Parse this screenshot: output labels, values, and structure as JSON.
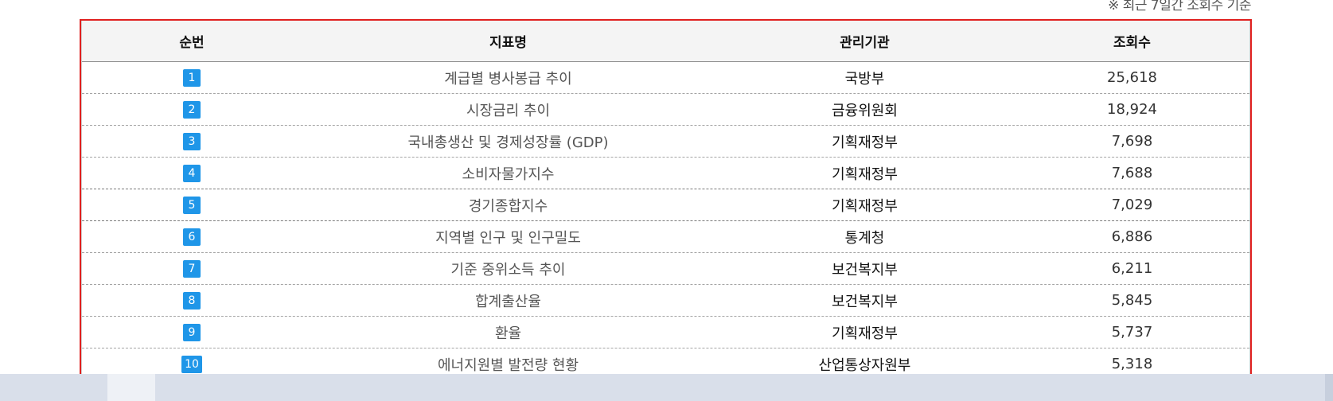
{
  "note": "※ 최근 7일간 조회수 기준",
  "table": {
    "headers": [
      "순번",
      "지표명",
      "관리기관",
      "조회수"
    ],
    "rows": [
      {
        "rank": "1",
        "indicator": "계급별 병사봉급 추이",
        "agency": "국방부",
        "views": "25,618"
      },
      {
        "rank": "2",
        "indicator": "시장금리 추이",
        "agency": "금융위원회",
        "views": "18,924"
      },
      {
        "rank": "3",
        "indicator": "국내총생산 및 경제성장률 (GDP)",
        "agency": "기획재정부",
        "views": "7,698"
      },
      {
        "rank": "4",
        "indicator": "소비자물가지수",
        "agency": "기획재정부",
        "views": "7,688"
      },
      {
        "rank": "5",
        "indicator": "경기종합지수",
        "agency": "기획재정부",
        "views": "7,029"
      },
      {
        "rank": "6",
        "indicator": "지역별 인구 및 인구밀도",
        "agency": "통계청",
        "views": "6,886"
      },
      {
        "rank": "7",
        "indicator": "기준 중위소득 추이",
        "agency": "보건복지부",
        "views": "6,211"
      },
      {
        "rank": "8",
        "indicator": "합계출산율",
        "agency": "보건복지부",
        "views": "5,845"
      },
      {
        "rank": "9",
        "indicator": "환율",
        "agency": "기획재정부",
        "views": "5,737"
      },
      {
        "rank": "10",
        "indicator": "에너지원별 발전량 현황",
        "agency": "산업통상자원부",
        "views": "5,318"
      }
    ]
  }
}
